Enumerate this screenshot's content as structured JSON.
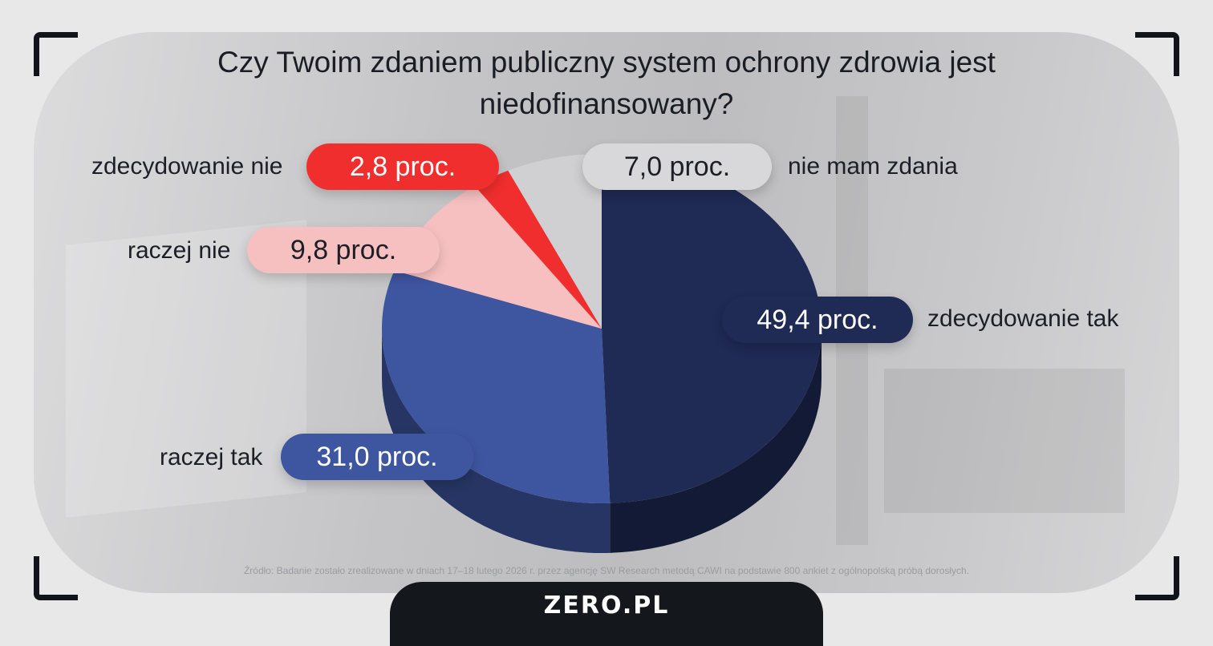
{
  "chart_data": {
    "type": "pie",
    "title": "Czy Twoim zdaniem publiczny system ochrony zdrowia jest niedofinansowany?",
    "slices": [
      {
        "label": "zdecydowanie tak",
        "value": 49.4,
        "value_label": "49,4 proc.",
        "color": "#1f2a55"
      },
      {
        "label": "raczej tak",
        "value": 31.0,
        "value_label": "31,0 proc.",
        "color": "#3e56a0"
      },
      {
        "label": "raczej nie",
        "value": 9.8,
        "value_label": "9,8 proc.",
        "color": "#f7c0c0"
      },
      {
        "label": "zdecydowanie nie",
        "value": 2.8,
        "value_label": "2,8 proc.",
        "color": "#f02e2e"
      },
      {
        "label": "nie mam zdania",
        "value": 7.0,
        "value_label": "7,0 proc.",
        "color": "#d0d0d2"
      }
    ]
  },
  "source": "Źródło: Badanie zostało zrealizowane w dniach 17–18 lutego 2026 r. przez agencję SW Research metodą CAWI na podstawie 800 ankiet z ogólnopolską próbą dorosłych.",
  "brand": "ZERO.PL"
}
